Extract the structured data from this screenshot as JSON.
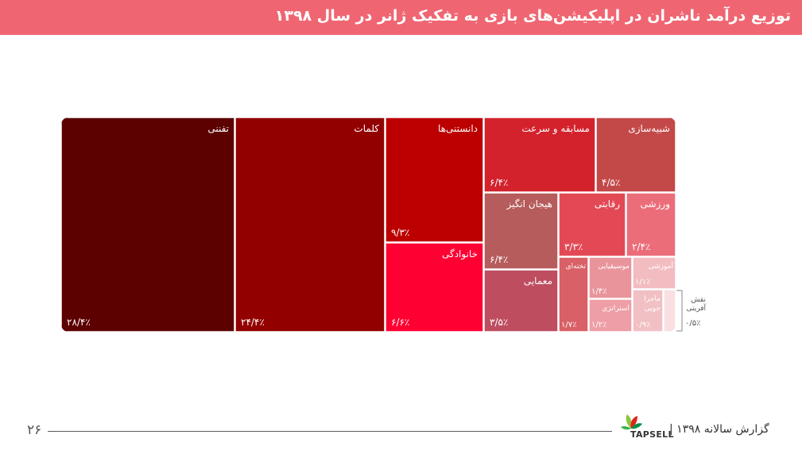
{
  "header": {
    "title": "توزیع درآمد ناشران در اپلیکیشن‌های بازی به تفکیک ژانر در سال ۱۳۹۸"
  },
  "chart_data": {
    "type": "treemap",
    "title": "توزیع درآمد ناشران در اپلیکیشن‌های بازی به تفکیک ژانر در سال ۱۳۹۸",
    "unit": "%",
    "items": [
      {
        "name": "تفننی",
        "value": 28.4,
        "value_label": "۲۸/۴٪",
        "color": "#5c0000"
      },
      {
        "name": "کلمات",
        "value": 24.4,
        "value_label": "۲۴/۴٪",
        "color": "#920000"
      },
      {
        "name": "دانستنی‌ها",
        "value": 9.3,
        "value_label": "۹/۳٪",
        "color": "#bc0000"
      },
      {
        "name": "خانوادگی",
        "value": 6.6,
        "value_label": "۶/۶٪",
        "color": "#ff0033"
      },
      {
        "name": "مسابقه و سرعت",
        "value": 6.4,
        "value_label": "۶/۴٪",
        "color": "#d3222c"
      },
      {
        "name": "شبیه‌سازی",
        "value": 4.5,
        "value_label": "۴/۵٪",
        "color": "#c34848"
      },
      {
        "name": "هیجان انگیز",
        "value": 6.4,
        "value_label": "۶/۴٪",
        "color": "#b65c5c"
      },
      {
        "name": "رقابتی",
        "value": 3.3,
        "value_label": "۳/۳٪",
        "color": "#e34955"
      },
      {
        "name": "ورزشی",
        "value": 2.4,
        "value_label": "۲/۴٪",
        "color": "#ec6d7a"
      },
      {
        "name": "معمایی",
        "value": 3.5,
        "value_label": "۳/۵٪",
        "color": "#be4d60"
      },
      {
        "name": "تخته‌ای",
        "value": 1.7,
        "value_label": "۱/۷٪",
        "color": "#d96066"
      },
      {
        "name": "موسیقیایی",
        "value": 1.4,
        "value_label": "۱/۴٪",
        "color": "#e9949b"
      },
      {
        "name": "آموزشی",
        "value": 1.1,
        "value_label": "۱/۱٪",
        "color": "#f2bcc1"
      },
      {
        "name": "استراتژی",
        "value": 1.2,
        "value_label": "۱/۲٪",
        "color": "#ee9ea6"
      },
      {
        "name": "ماجرا جویی",
        "value": 0.9,
        "value_label": "۰/۹٪",
        "color": "#f1c0c4"
      },
      {
        "name": "نقش آفرینی",
        "value": 0.5,
        "value_label": "۰/۵٪",
        "color": "#f9dfe1"
      }
    ]
  },
  "footer": {
    "page_number": "۲۶",
    "report_label": "گزارش سالانه ۱۳۹۸ |",
    "logo_text": "TAPSELL"
  }
}
